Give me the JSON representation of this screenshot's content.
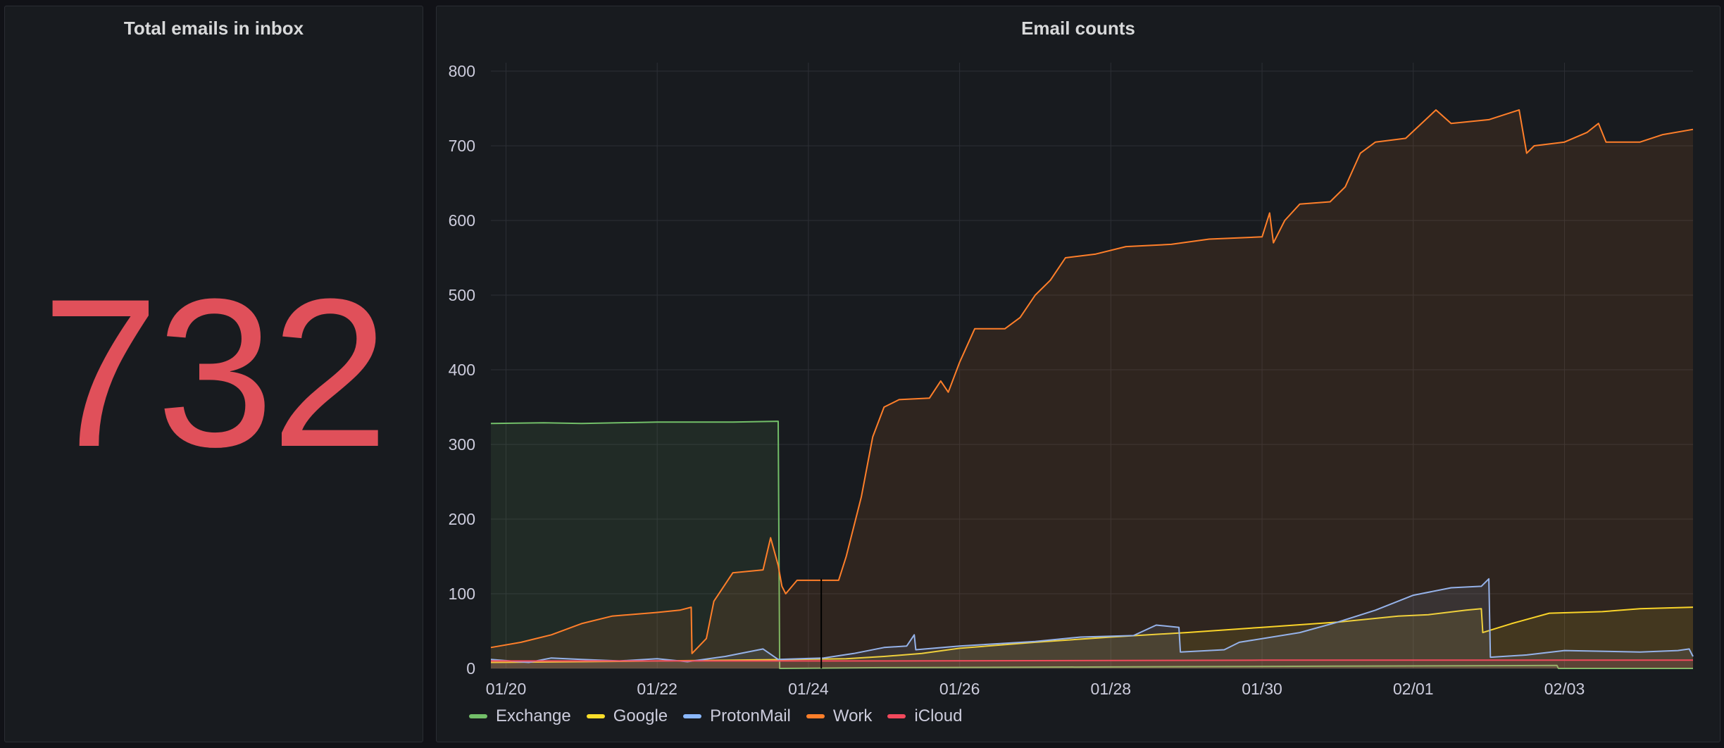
{
  "stat_panel": {
    "title": "Total emails in inbox",
    "value": "732",
    "value_color": "#e0505a"
  },
  "chart_panel": {
    "title": "Email counts"
  },
  "chart_data": {
    "type": "area",
    "title": "Email counts",
    "xlabel": "",
    "ylabel": "",
    "x_tick_labels": [
      "01/20",
      "01/22",
      "01/24",
      "01/26",
      "01/28",
      "01/30",
      "02/01",
      "02/03"
    ],
    "y_ticks": [
      0,
      100,
      200,
      300,
      400,
      500,
      600,
      700,
      800
    ],
    "xlim_days": [
      -0.2,
      15.7
    ],
    "ylim": [
      0,
      800
    ],
    "grid": true,
    "legend_position": "bottom-left",
    "series": [
      {
        "name": "Exchange",
        "color": "#73bf69",
        "points": [
          [
            -0.2,
            328
          ],
          [
            0.5,
            329
          ],
          [
            1.0,
            328
          ],
          [
            2.0,
            330
          ],
          [
            3.0,
            330
          ],
          [
            3.6,
            331
          ],
          [
            3.62,
            0
          ],
          [
            5.0,
            1
          ],
          [
            8.0,
            2
          ],
          [
            11.0,
            3
          ],
          [
            13.9,
            4
          ],
          [
            13.92,
            0
          ],
          [
            15.7,
            0
          ]
        ]
      },
      {
        "name": "Google",
        "color": "#fade2a",
        "points": [
          [
            -0.2,
            8
          ],
          [
            1.0,
            9
          ],
          [
            2.0,
            10
          ],
          [
            3.0,
            11
          ],
          [
            3.8,
            12
          ],
          [
            4.5,
            13
          ],
          [
            5.0,
            16
          ],
          [
            5.5,
            20
          ],
          [
            6.0,
            27
          ],
          [
            7.0,
            35
          ],
          [
            8.0,
            42
          ],
          [
            9.0,
            48
          ],
          [
            10.0,
            55
          ],
          [
            11.0,
            62
          ],
          [
            11.8,
            70
          ],
          [
            12.2,
            72
          ],
          [
            12.7,
            78
          ],
          [
            12.9,
            80
          ],
          [
            12.92,
            48
          ],
          [
            13.3,
            60
          ],
          [
            13.8,
            74
          ],
          [
            14.5,
            76
          ],
          [
            15.0,
            80
          ],
          [
            15.7,
            82
          ]
        ]
      },
      {
        "name": "ProtonMail",
        "color": "#8ab8ff",
        "points": [
          [
            -0.2,
            12
          ],
          [
            0.3,
            8
          ],
          [
            0.6,
            14
          ],
          [
            1.0,
            12
          ],
          [
            1.5,
            10
          ],
          [
            2.0,
            13
          ],
          [
            2.4,
            9
          ],
          [
            2.9,
            16
          ],
          [
            3.4,
            26
          ],
          [
            3.6,
            12
          ],
          [
            4.2,
            14
          ],
          [
            4.6,
            20
          ],
          [
            5.0,
            28
          ],
          [
            5.3,
            30
          ],
          [
            5.4,
            45
          ],
          [
            5.42,
            25
          ],
          [
            6.0,
            30
          ],
          [
            7.0,
            36
          ],
          [
            7.6,
            42
          ],
          [
            8.3,
            44
          ],
          [
            8.6,
            58
          ],
          [
            8.9,
            55
          ],
          [
            8.92,
            22
          ],
          [
            9.5,
            25
          ],
          [
            9.7,
            35
          ],
          [
            10.5,
            48
          ],
          [
            11.0,
            62
          ],
          [
            11.5,
            78
          ],
          [
            12.0,
            98
          ],
          [
            12.5,
            108
          ],
          [
            12.9,
            110
          ],
          [
            13.0,
            120
          ],
          [
            13.02,
            15
          ],
          [
            13.5,
            18
          ],
          [
            14.0,
            24
          ],
          [
            15.0,
            22
          ],
          [
            15.5,
            24
          ],
          [
            15.65,
            26
          ],
          [
            15.7,
            16
          ]
        ]
      },
      {
        "name": "Work",
        "color": "#ff7f2a",
        "points": [
          [
            -0.2,
            28
          ],
          [
            0.2,
            35
          ],
          [
            0.6,
            45
          ],
          [
            1.0,
            60
          ],
          [
            1.4,
            70
          ],
          [
            2.0,
            75
          ],
          [
            2.3,
            78
          ],
          [
            2.45,
            82
          ],
          [
            2.46,
            20
          ],
          [
            2.65,
            40
          ],
          [
            2.75,
            90
          ],
          [
            3.0,
            128
          ],
          [
            3.4,
            132
          ],
          [
            3.5,
            175
          ],
          [
            3.6,
            138
          ],
          [
            3.65,
            110
          ],
          [
            3.7,
            100
          ],
          [
            3.85,
            118
          ],
          [
            4.4,
            118
          ],
          [
            4.5,
            150
          ],
          [
            4.7,
            230
          ],
          [
            4.85,
            310
          ],
          [
            5.0,
            350
          ],
          [
            5.2,
            360
          ],
          [
            5.6,
            362
          ],
          [
            5.75,
            385
          ],
          [
            5.85,
            370
          ],
          [
            6.0,
            410
          ],
          [
            6.2,
            455
          ],
          [
            6.6,
            455
          ],
          [
            6.8,
            470
          ],
          [
            7.0,
            500
          ],
          [
            7.2,
            520
          ],
          [
            7.4,
            550
          ],
          [
            7.8,
            555
          ],
          [
            8.2,
            565
          ],
          [
            8.8,
            568
          ],
          [
            9.3,
            575
          ],
          [
            10.0,
            578
          ],
          [
            10.1,
            610
          ],
          [
            10.15,
            570
          ],
          [
            10.3,
            600
          ],
          [
            10.5,
            622
          ],
          [
            10.9,
            625
          ],
          [
            11.1,
            645
          ],
          [
            11.3,
            690
          ],
          [
            11.5,
            705
          ],
          [
            11.9,
            710
          ],
          [
            12.3,
            748
          ],
          [
            12.5,
            730
          ],
          [
            13.0,
            735
          ],
          [
            13.4,
            748
          ],
          [
            13.5,
            690
          ],
          [
            13.6,
            700
          ],
          [
            14.0,
            705
          ],
          [
            14.3,
            718
          ],
          [
            14.45,
            730
          ],
          [
            14.55,
            705
          ],
          [
            15.0,
            705
          ],
          [
            15.3,
            715
          ],
          [
            15.7,
            722
          ]
        ]
      },
      {
        "name": "iCloud",
        "color": "#f2495c",
        "points": [
          [
            -0.2,
            10
          ],
          [
            5.0,
            10
          ],
          [
            10.0,
            11
          ],
          [
            15.7,
            11
          ]
        ]
      }
    ],
    "annotation_line_day": 4.17
  }
}
